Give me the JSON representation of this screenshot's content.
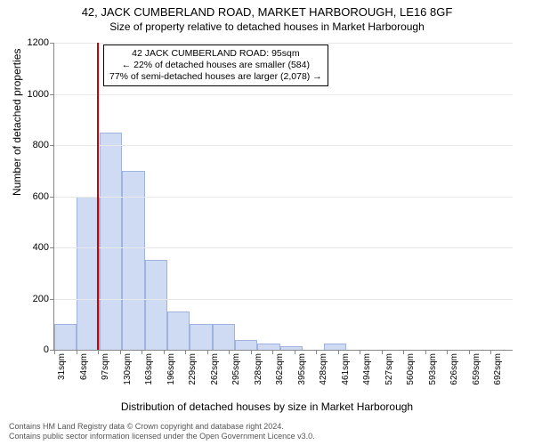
{
  "title_main": "42, JACK CUMBERLAND ROAD, MARKET HARBOROUGH, LE16 8GF",
  "title_sub": "Size of property relative to detached houses in Market Harborough",
  "ylabel": "Number of detached properties",
  "xlabel": "Distribution of detached houses by size in Market Harborough",
  "chart": {
    "type": "histogram",
    "ylim": [
      0,
      1200
    ],
    "ytick_step": 200,
    "yticks": [
      0,
      200,
      400,
      600,
      800,
      1000,
      1200
    ],
    "x_categories": [
      "31sqm",
      "64sqm",
      "97sqm",
      "130sqm",
      "163sqm",
      "196sqm",
      "229sqm",
      "262sqm",
      "295sqm",
      "328sqm",
      "362sqm",
      "395sqm",
      "428sqm",
      "461sqm",
      "494sqm",
      "527sqm",
      "560sqm",
      "593sqm",
      "626sqm",
      "659sqm",
      "692sqm"
    ],
    "values": [
      100,
      600,
      850,
      700,
      350,
      150,
      100,
      100,
      40,
      25,
      15,
      0,
      25,
      0,
      0,
      0,
      0,
      0,
      0,
      0,
      0
    ],
    "bar_fill": "#cfdaf3",
    "bar_stroke": "#9fb3e0",
    "grid_color": "#e8e8e8",
    "background_color": "#ffffff",
    "refline_value_sqm": 95,
    "refline_color": "#cc0000"
  },
  "annotation": {
    "lines": [
      "42 JACK CUMBERLAND ROAD: 95sqm",
      "← 22% of detached houses are smaller (584)",
      "77% of semi-detached houses are larger (2,078) →"
    ],
    "border_color": "#000000",
    "bg_color": "#ffffff",
    "fontsize": 10.5
  },
  "footer": {
    "line1": "Contains HM Land Registry data © Crown copyright and database right 2024.",
    "line2": "Contains public sector information licensed under the Open Government Licence v3.0."
  }
}
